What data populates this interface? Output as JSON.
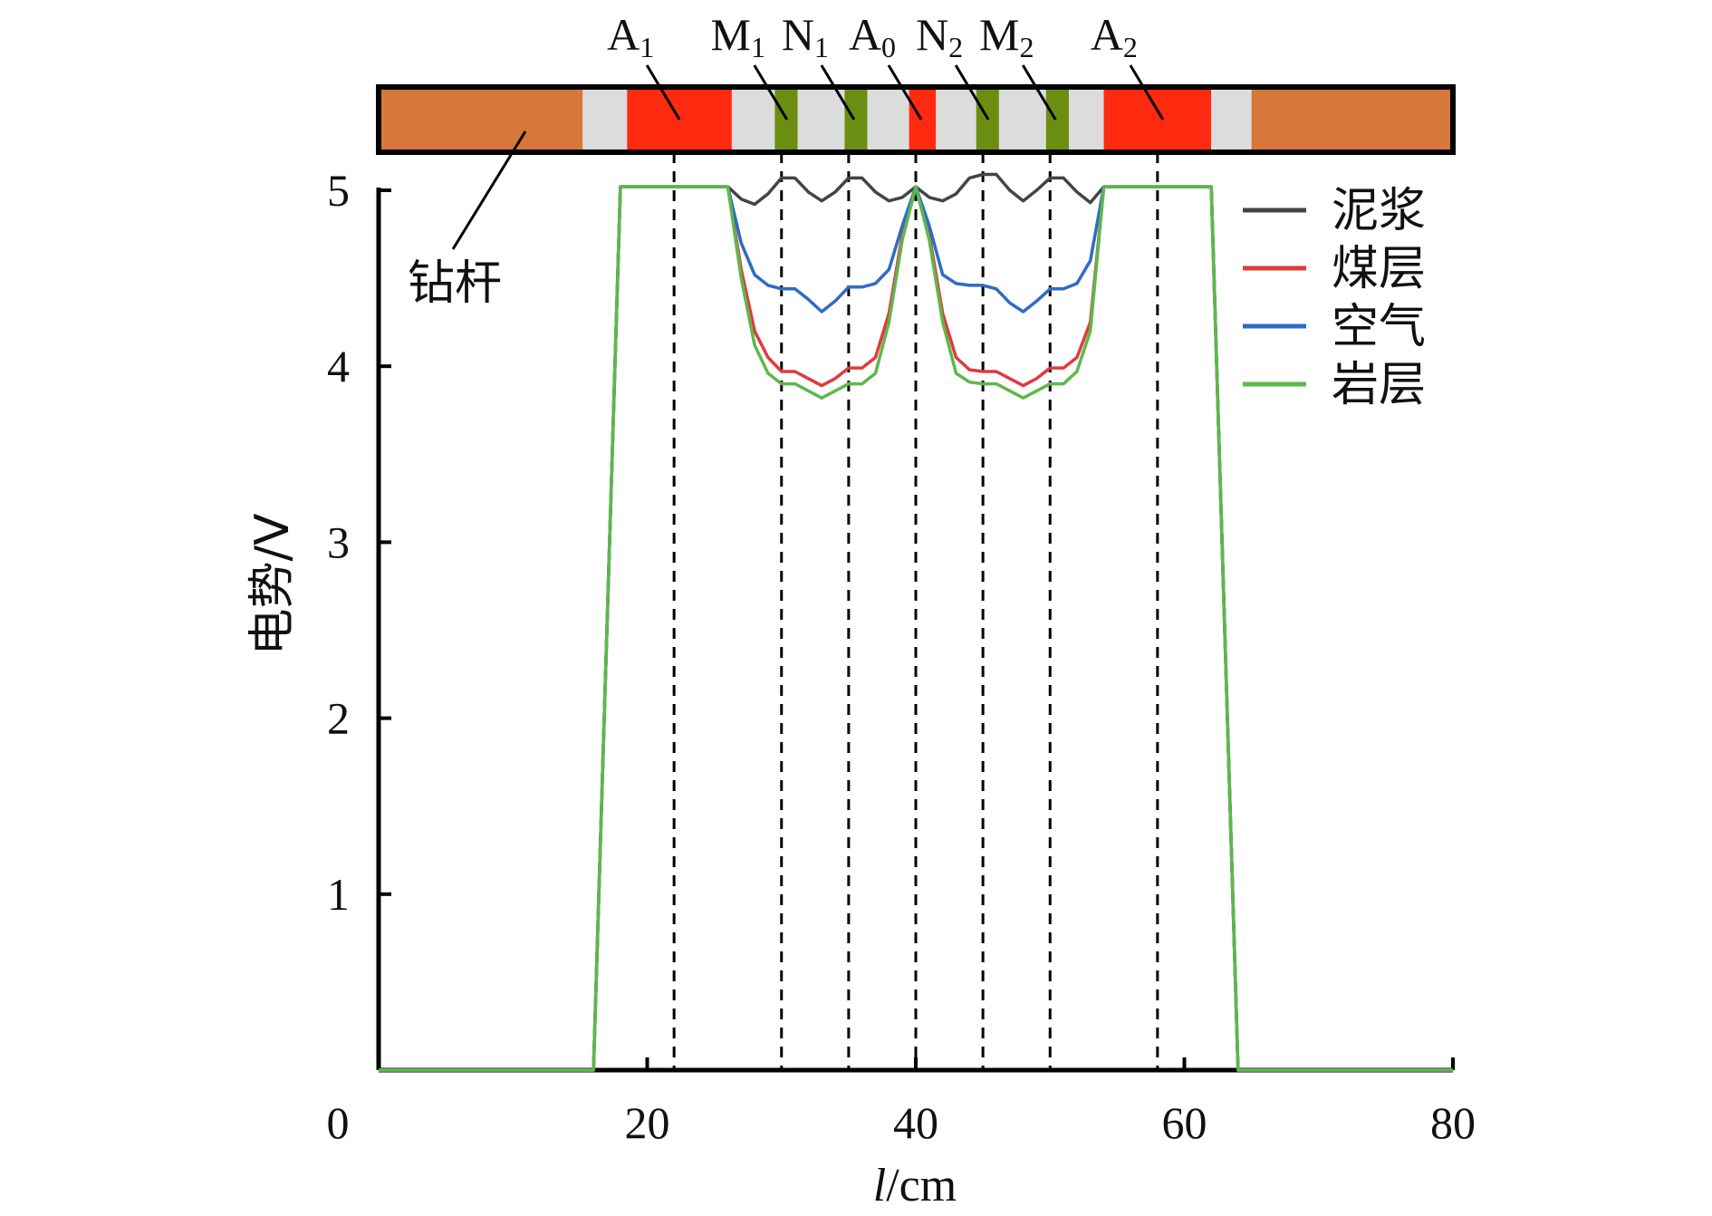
{
  "chart_data": {
    "type": "line",
    "title": "",
    "xlabel_italic": "l",
    "xlabel_unit": "/cm",
    "ylabel": "电势/V",
    "xlim": [
      0,
      80
    ],
    "ylim": [
      0,
      5
    ],
    "xticks": [
      "0",
      "20",
      "40",
      "60",
      "80"
    ],
    "yticks": [
      "1",
      "2",
      "3",
      "4",
      "5"
    ],
    "legend_position": "top-right",
    "rod_label": "钻杆",
    "electrodes": [
      {
        "name": "A",
        "sub": "1",
        "x": 22
      },
      {
        "name": "M",
        "sub": "1",
        "x": 30
      },
      {
        "name": "N",
        "sub": "1",
        "x": 35
      },
      {
        "name": "A",
        "sub": "0",
        "x": 40
      },
      {
        "name": "N",
        "sub": "2",
        "x": 45
      },
      {
        "name": "M",
        "sub": "2",
        "x": 50
      },
      {
        "name": "A",
        "sub": "2",
        "x": 58
      }
    ],
    "rod_segments": [
      {
        "from": 0,
        "to": 15.2,
        "material": "rod",
        "color": "#D8773A"
      },
      {
        "from": 15.2,
        "to": 18.5,
        "material": "insulator",
        "color": "#DCDCDC"
      },
      {
        "from": 18.5,
        "to": 26.3,
        "material": "electrode",
        "color": "#FF2A10"
      },
      {
        "from": 26.3,
        "to": 29.5,
        "material": "insulator",
        "color": "#DCDCDC"
      },
      {
        "from": 29.5,
        "to": 31.2,
        "material": "ring",
        "color": "#6B8E12"
      },
      {
        "from": 31.2,
        "to": 34.7,
        "material": "insulator",
        "color": "#DCDCDC"
      },
      {
        "from": 34.7,
        "to": 36.4,
        "material": "ring",
        "color": "#6B8E12"
      },
      {
        "from": 36.4,
        "to": 39.5,
        "material": "insulator",
        "color": "#DCDCDC"
      },
      {
        "from": 39.5,
        "to": 41.5,
        "material": "electrode",
        "color": "#FF2A10"
      },
      {
        "from": 41.5,
        "to": 44.5,
        "material": "insulator",
        "color": "#DCDCDC"
      },
      {
        "from": 44.5,
        "to": 46.2,
        "material": "ring",
        "color": "#6B8E12"
      },
      {
        "from": 46.2,
        "to": 49.7,
        "material": "insulator",
        "color": "#DCDCDC"
      },
      {
        "from": 49.7,
        "to": 51.4,
        "material": "ring",
        "color": "#6B8E12"
      },
      {
        "from": 51.4,
        "to": 54.0,
        "material": "insulator",
        "color": "#DCDCDC"
      },
      {
        "from": 54.0,
        "to": 62.0,
        "material": "electrode",
        "color": "#FF2A10"
      },
      {
        "from": 62.0,
        "to": 65.0,
        "material": "insulator",
        "color": "#DCDCDC"
      },
      {
        "from": 65.0,
        "to": 80.0,
        "material": "rod",
        "color": "#D8773A"
      }
    ],
    "series": [
      {
        "name": "泥浆",
        "color": "#444444",
        "x": [
          0,
          16,
          18,
          26,
          27,
          28,
          29,
          30,
          31,
          32,
          33,
          34,
          35,
          36,
          37,
          38,
          39,
          40,
          41,
          42,
          43,
          44,
          45,
          46,
          47,
          48,
          49,
          50,
          51,
          52,
          53,
          54,
          62,
          64,
          80
        ],
        "y": [
          0,
          0,
          5.02,
          5.02,
          4.95,
          4.92,
          4.98,
          5.07,
          5.07,
          4.99,
          4.94,
          4.99,
          5.07,
          5.07,
          4.99,
          4.94,
          4.96,
          5.02,
          4.96,
          4.94,
          4.98,
          5.07,
          5.09,
          5.09,
          5.0,
          4.94,
          5.0,
          5.07,
          5.07,
          4.99,
          4.93,
          5.02,
          5.02,
          0,
          0
        ]
      },
      {
        "name": "煤层",
        "color": "#E03A3E",
        "x": [
          0,
          16,
          18,
          26,
          27,
          28,
          29,
          30,
          31,
          32,
          33,
          34,
          35,
          36,
          37,
          38,
          39,
          40,
          41,
          42,
          43,
          44,
          45,
          46,
          47,
          48,
          49,
          50,
          51,
          52,
          53,
          54,
          62,
          64,
          80
        ],
        "y": [
          0,
          0,
          5.02,
          5.02,
          4.55,
          4.2,
          4.05,
          3.97,
          3.97,
          3.93,
          3.89,
          3.93,
          3.99,
          3.99,
          4.05,
          4.3,
          4.75,
          5.02,
          4.75,
          4.3,
          4.05,
          3.98,
          3.97,
          3.97,
          3.93,
          3.89,
          3.93,
          3.99,
          3.99,
          4.05,
          4.25,
          5.02,
          5.02,
          0,
          0
        ]
      },
      {
        "name": "空气",
        "color": "#2F6BC4",
        "x": [
          0,
          16,
          18,
          26,
          27,
          28,
          29,
          30,
          31,
          32,
          33,
          34,
          35,
          36,
          37,
          38,
          39,
          40,
          41,
          42,
          43,
          44,
          45,
          46,
          47,
          48,
          49,
          50,
          51,
          52,
          53,
          54,
          62,
          64,
          80
        ],
        "y": [
          0,
          0,
          5.02,
          5.02,
          4.7,
          4.52,
          4.46,
          4.44,
          4.44,
          4.38,
          4.31,
          4.37,
          4.45,
          4.45,
          4.47,
          4.55,
          4.8,
          5.02,
          4.8,
          4.52,
          4.47,
          4.46,
          4.46,
          4.44,
          4.36,
          4.31,
          4.37,
          4.44,
          4.44,
          4.47,
          4.6,
          5.02,
          5.02,
          0,
          0
        ]
      },
      {
        "name": "岩层",
        "color": "#5DB84B",
        "x": [
          0,
          16,
          18,
          26,
          27,
          28,
          29,
          30,
          31,
          32,
          33,
          34,
          35,
          36,
          37,
          38,
          39,
          40,
          41,
          42,
          43,
          44,
          45,
          46,
          47,
          48,
          49,
          50,
          51,
          52,
          53,
          54,
          62,
          64,
          80
        ],
        "y": [
          0,
          0,
          5.02,
          5.02,
          4.5,
          4.12,
          3.96,
          3.9,
          3.9,
          3.86,
          3.82,
          3.86,
          3.9,
          3.9,
          3.96,
          4.25,
          4.72,
          5.02,
          4.72,
          4.25,
          3.96,
          3.91,
          3.9,
          3.9,
          3.86,
          3.82,
          3.86,
          3.9,
          3.9,
          3.97,
          4.2,
          5.02,
          5.02,
          0,
          0
        ]
      }
    ]
  }
}
